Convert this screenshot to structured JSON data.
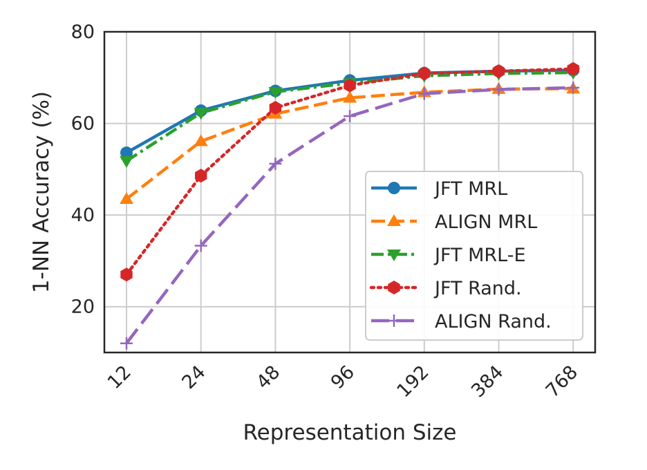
{
  "chart_data": {
    "type": "line",
    "xlabel": "Representation Size",
    "ylabel": "1-NN Accuracy (%)",
    "categories": [
      "12",
      "24",
      "48",
      "96",
      "192",
      "384",
      "768"
    ],
    "ylim": [
      10,
      80
    ],
    "yticks": [
      20,
      40,
      60,
      80
    ],
    "grid": true,
    "legend_position": "lower-right",
    "series": [
      {
        "name": "JFT MRL",
        "color": "#1f77b4",
        "marker": "circle",
        "dash": "solid",
        "values": [
          53.6,
          62.8,
          67.1,
          69.4,
          71.0,
          71.4,
          71.6
        ]
      },
      {
        "name": "ALIGN MRL",
        "color": "#ff7f0e",
        "marker": "triangle-up",
        "dash": "dashed",
        "values": [
          43.5,
          56.1,
          62.1,
          65.6,
          66.8,
          67.5,
          67.6
        ]
      },
      {
        "name": "JFT MRL-E",
        "color": "#2ca02c",
        "marker": "triangle-down",
        "dash": "dashdot",
        "values": [
          51.8,
          62.3,
          66.9,
          68.8,
          70.4,
          70.9,
          71.1
        ]
      },
      {
        "name": "JFT Rand.",
        "color": "#d62728",
        "marker": "hexagon",
        "dash": "dotted",
        "values": [
          27.0,
          48.6,
          63.4,
          68.3,
          70.9,
          71.4,
          71.9
        ]
      },
      {
        "name": "ALIGN Rand.",
        "color": "#9467bd",
        "marker": "plus",
        "dash": "longdash",
        "values": [
          12.0,
          33.3,
          51.2,
          61.6,
          66.5,
          67.4,
          67.8
        ]
      }
    ]
  }
}
